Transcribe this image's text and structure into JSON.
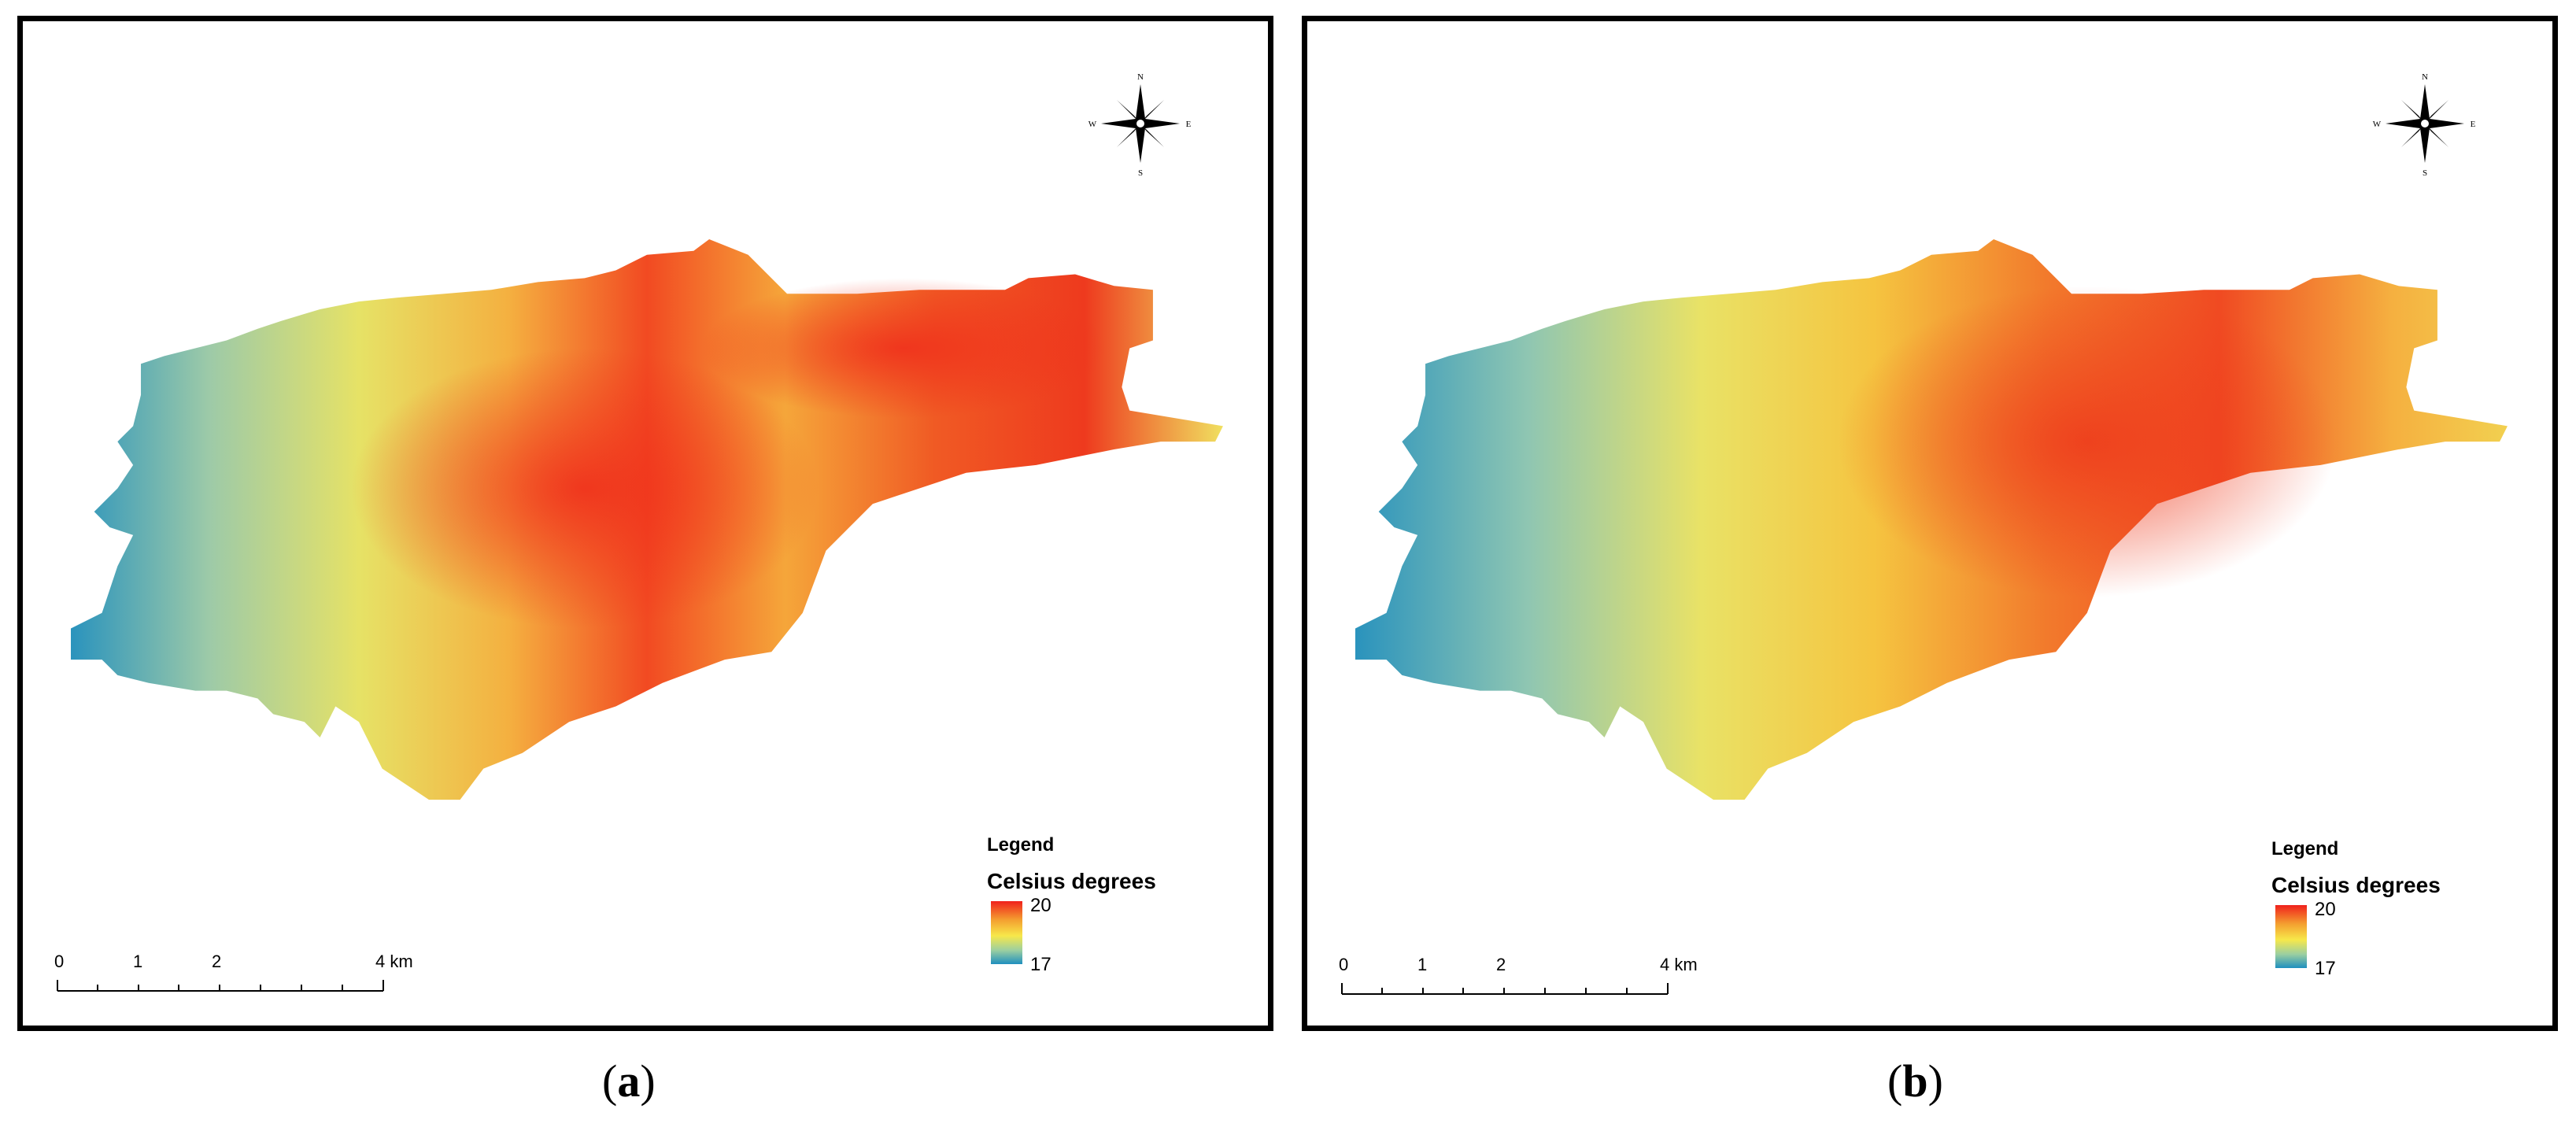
{
  "panels": [
    {
      "caption_letter": "a",
      "compass": {
        "n": "N",
        "s": "S",
        "e": "E",
        "w": "W"
      },
      "legend": {
        "title": "Legend",
        "subtitle": "Celsius degrees",
        "max": "20",
        "min": "17"
      },
      "scale": {
        "ticks": [
          "0",
          "1",
          "2",
          "4 km"
        ]
      }
    },
    {
      "caption_letter": "b",
      "compass": {
        "n": "N",
        "s": "S",
        "e": "E",
        "w": "W"
      },
      "legend": {
        "title": "Legend",
        "subtitle": "Celsius degrees",
        "max": "20",
        "min": "17"
      },
      "scale": {
        "ticks": [
          "0",
          "1",
          "2",
          "4 km"
        ]
      }
    }
  ],
  "colors": {
    "hot": "#f0201c",
    "warm": "#f4a030",
    "mid": "#f7e84a",
    "cool": "#9ccfa0",
    "cold": "#1e8fbf"
  }
}
